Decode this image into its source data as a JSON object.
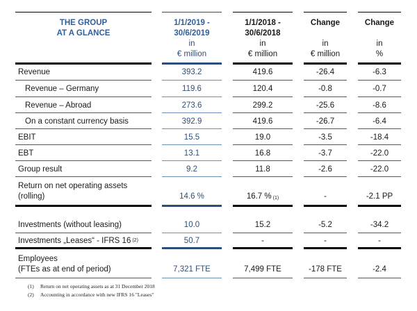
{
  "header": {
    "title_line1": "THE GROUP",
    "title_line2": "AT A GLANCE",
    "columns": [
      {
        "line1": "1/1/2019 -",
        "line2": "30/6/2019",
        "line3": "in",
        "line4": "€ million"
      },
      {
        "line1": "1/1/2018 -",
        "line2": "30/6/2018",
        "line3": "in",
        "line4": "€ million"
      },
      {
        "line1": "Change",
        "line2": "",
        "line3": "in",
        "line4": "€ million"
      },
      {
        "line1": "Change",
        "line2": "",
        "line3": "in",
        "line4": "%"
      }
    ]
  },
  "rows": [
    {
      "label": "Revenue",
      "v": [
        "393.2",
        "419.6",
        "-26.4",
        "-6.3"
      ]
    },
    {
      "label": "Revenue – Germany",
      "v": [
        "119.6",
        "120.4",
        "-0.8",
        "-0.7"
      ]
    },
    {
      "label": "Revenue – Abroad",
      "v": [
        "273.6",
        "299.2",
        "-25.6",
        "-8.6"
      ]
    },
    {
      "label": "On a constant currency basis",
      "v": [
        "392.9",
        "419.6",
        "-26.7",
        "-6.4"
      ]
    },
    {
      "label": "EBIT",
      "v": [
        "15.5",
        "19.0",
        "-3.5",
        "-18.4"
      ]
    },
    {
      "label": "EBT",
      "v": [
        "13.1",
        "16.8",
        "-3.7",
        "-22.0"
      ]
    },
    {
      "label": "Group result",
      "v": [
        "9.2",
        "11.8",
        "-2.6",
        "-22.0"
      ]
    },
    {
      "label1": "Return on net operating assets",
      "label2": "(rolling)",
      "v": [
        "14.6 %",
        "16.7 %",
        "-",
        "-2.1 PP"
      ],
      "sup": "(1)"
    },
    {
      "label": "Investments (without leasing)",
      "v": [
        "10.0",
        "15.2",
        "-5.2",
        "-34.2"
      ]
    },
    {
      "label": "Investments „Leases“ - IFRS 16",
      "sup": "(2)",
      "v": [
        "50.7",
        "-",
        "-",
        "-"
      ]
    },
    {
      "label1": "Employees",
      "label2": "(FTEs as at end of period)",
      "v": [
        "7,321 FTE",
        "7,499 FTE",
        "-178 FTE",
        "-2.4"
      ]
    }
  ],
  "footnotes": [
    {
      "num": "(1)",
      "text": "Return on net operating assets as at 31 December 2018"
    },
    {
      "num": "(2)",
      "text": "Accounting in accordance with new IFRS 16 \"Leases\""
    }
  ],
  "colors": {
    "accent": "#2f5f9a",
    "accent_line": "#2a4d7a"
  }
}
